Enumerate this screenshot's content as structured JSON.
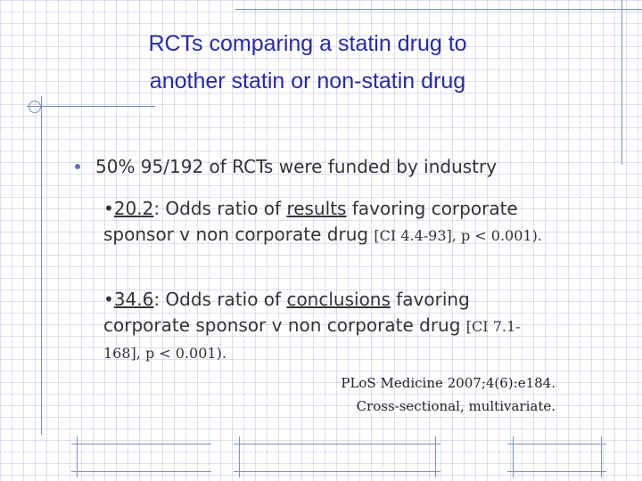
{
  "slide": {
    "title_line1": "RCTs comparing a statin drug to",
    "title_line2": "another statin or non-statin drug",
    "bullet": "50% 95/192 of RCTs were funded by industry",
    "sub1": {
      "bullet_char": "•",
      "number": "20.2",
      "text_before": ": Odds ratio of ",
      "underlined": "results",
      "text_after": " favoring corporate sponsor v non corporate drug ",
      "ci": "[CI 4.4-93], p < 0.001)."
    },
    "sub2": {
      "bullet_char": "•",
      "number": "34.6",
      "text_before": ": Odds ratio of ",
      "underlined": "conclusions",
      "text_after": " favoring corporate sponsor v non corporate drug ",
      "ci": "[CI 7.1-168], p < 0.001)."
    },
    "citation_line1": "PLoS Medicine 2007;4(6):e184.",
    "citation_line2": "Cross-sectional, multivariate."
  },
  "colors": {
    "title": "#2a2aa0",
    "text": "#333333",
    "accent": "#5a73b8",
    "grid": "#96aad2"
  }
}
